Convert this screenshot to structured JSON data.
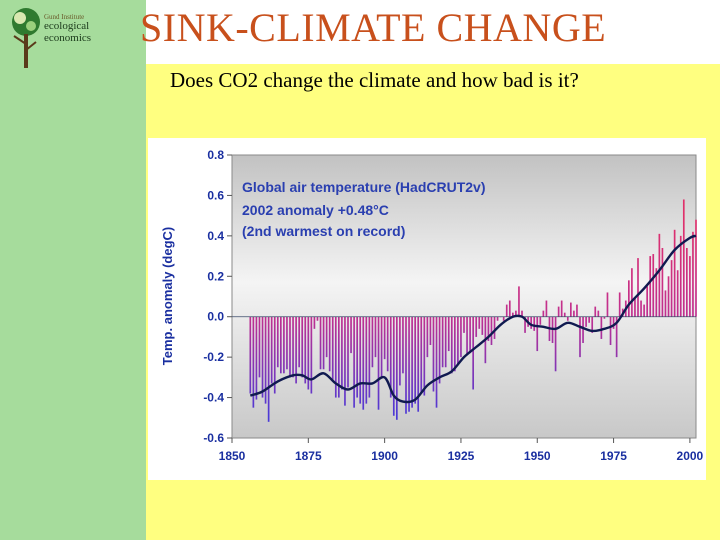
{
  "slide": {
    "title": "SINK-CLIMATE CHANGE",
    "subtitle": "Does CO2 change the climate and how bad is it?",
    "logo": {
      "line1": "Gund Institute",
      "line2": "ecological",
      "line3": "economics"
    }
  },
  "colors": {
    "title": "#c8501c",
    "background": "#ffff80",
    "left_band": "#a6dc9c",
    "top_band": "#ffffff",
    "axis_text": "#1a2fa0",
    "annotation_text": "#2a3fb0",
    "smooth_line": "#101a50",
    "bar_warm": "#e0306a",
    "bar_cool": "#4a3ad8"
  },
  "chart_data": {
    "type": "bar",
    "ylabel": "Temp. anomaly (degC)",
    "xlabel": "",
    "annotations": [
      "Global air temperature (HadCRUT2v)",
      "2002 anomaly +0.48°C",
      "(2nd warmest on record)"
    ],
    "xlim": [
      1850,
      2002
    ],
    "ylim": [
      -0.6,
      0.8
    ],
    "x_ticks": [
      1850,
      1875,
      1900,
      1925,
      1950,
      1975,
      2000
    ],
    "y_ticks": [
      "0.8",
      "0.6",
      "0.4",
      "0.2",
      "0.0",
      "-0.2",
      "-0.4",
      "-0.6"
    ],
    "grid": false,
    "years": [
      1856,
      1857,
      1858,
      1859,
      1860,
      1861,
      1862,
      1863,
      1864,
      1865,
      1866,
      1867,
      1868,
      1869,
      1870,
      1871,
      1872,
      1873,
      1874,
      1875,
      1876,
      1877,
      1878,
      1879,
      1880,
      1881,
      1882,
      1883,
      1884,
      1885,
      1886,
      1887,
      1888,
      1889,
      1890,
      1891,
      1892,
      1893,
      1894,
      1895,
      1896,
      1897,
      1898,
      1899,
      1900,
      1901,
      1902,
      1903,
      1904,
      1905,
      1906,
      1907,
      1908,
      1909,
      1910,
      1911,
      1912,
      1913,
      1914,
      1915,
      1916,
      1917,
      1918,
      1919,
      1920,
      1921,
      1922,
      1923,
      1924,
      1925,
      1926,
      1927,
      1928,
      1929,
      1930,
      1931,
      1932,
      1933,
      1934,
      1935,
      1936,
      1937,
      1938,
      1939,
      1940,
      1941,
      1942,
      1943,
      1944,
      1945,
      1946,
      1947,
      1948,
      1949,
      1950,
      1951,
      1952,
      1953,
      1954,
      1955,
      1956,
      1957,
      1958,
      1959,
      1960,
      1961,
      1962,
      1963,
      1964,
      1965,
      1966,
      1967,
      1968,
      1969,
      1970,
      1971,
      1972,
      1973,
      1974,
      1975,
      1976,
      1977,
      1978,
      1979,
      1980,
      1981,
      1982,
      1983,
      1984,
      1985,
      1986,
      1987,
      1988,
      1989,
      1990,
      1991,
      1992,
      1993,
      1994,
      1995,
      1996,
      1997,
      1998,
      1999,
      2000,
      2001,
      2002
    ],
    "anomalies": [
      -0.38,
      -0.45,
      -0.41,
      -0.3,
      -0.4,
      -0.43,
      -0.52,
      -0.33,
      -0.38,
      -0.25,
      -0.28,
      -0.28,
      -0.26,
      -0.3,
      -0.3,
      -0.33,
      -0.25,
      -0.3,
      -0.33,
      -0.36,
      -0.38,
      -0.06,
      -0.02,
      -0.26,
      -0.26,
      -0.2,
      -0.27,
      -0.32,
      -0.4,
      -0.4,
      -0.36,
      -0.44,
      -0.35,
      -0.18,
      -0.45,
      -0.4,
      -0.43,
      -0.46,
      -0.43,
      -0.4,
      -0.25,
      -0.2,
      -0.46,
      -0.3,
      -0.21,
      -0.27,
      -0.4,
      -0.49,
      -0.51,
      -0.34,
      -0.28,
      -0.48,
      -0.47,
      -0.45,
      -0.43,
      -0.47,
      -0.38,
      -0.39,
      -0.2,
      -0.14,
      -0.37,
      -0.45,
      -0.33,
      -0.25,
      -0.25,
      -0.17,
      -0.28,
      -0.27,
      -0.24,
      -0.2,
      -0.08,
      -0.19,
      -0.18,
      -0.36,
      -0.1,
      -0.06,
      -0.09,
      -0.23,
      -0.12,
      -0.14,
      -0.11,
      -0.02,
      0.0,
      -0.02,
      0.06,
      0.08,
      0.02,
      0.03,
      0.15,
      0.03,
      -0.08,
      -0.05,
      -0.06,
      -0.07,
      -0.17,
      -0.04,
      0.03,
      0.08,
      -0.12,
      -0.13,
      -0.27,
      0.05,
      0.08,
      0.02,
      -0.02,
      0.07,
      0.03,
      0.06,
      -0.2,
      -0.13,
      -0.05,
      -0.03,
      -0.08,
      0.05,
      0.03,
      -0.11,
      -0.01,
      0.12,
      -0.14,
      -0.06,
      -0.2,
      0.12,
      0.04,
      0.08,
      0.18,
      0.24,
      0.09,
      0.29,
      0.08,
      0.06,
      0.15,
      0.3,
      0.31,
      0.24,
      0.41,
      0.34,
      0.13,
      0.2,
      0.28,
      0.43,
      0.23,
      0.4,
      0.58,
      0.34,
      0.3,
      0.42,
      0.48
    ],
    "smoothed": [
      [
        1856,
        -0.39
      ],
      [
        1860,
        -0.37
      ],
      [
        1865,
        -0.32
      ],
      [
        1870,
        -0.29
      ],
      [
        1873,
        -0.29
      ],
      [
        1876,
        -0.31
      ],
      [
        1880,
        -0.28
      ],
      [
        1884,
        -0.33
      ],
      [
        1888,
        -0.36
      ],
      [
        1892,
        -0.33
      ],
      [
        1896,
        -0.33
      ],
      [
        1900,
        -0.3
      ],
      [
        1903,
        -0.39
      ],
      [
        1906,
        -0.42
      ],
      [
        1910,
        -0.41
      ],
      [
        1914,
        -0.34
      ],
      [
        1918,
        -0.3
      ],
      [
        1922,
        -0.27
      ],
      [
        1926,
        -0.2
      ],
      [
        1930,
        -0.15
      ],
      [
        1934,
        -0.1
      ],
      [
        1938,
        -0.04
      ],
      [
        1942,
        0.0
      ],
      [
        1945,
        0.0
      ],
      [
        1948,
        -0.04
      ],
      [
        1952,
        -0.05
      ],
      [
        1956,
        -0.06
      ],
      [
        1960,
        -0.03
      ],
      [
        1964,
        -0.05
      ],
      [
        1968,
        -0.07
      ],
      [
        1972,
        -0.06
      ],
      [
        1976,
        -0.03
      ],
      [
        1980,
        0.06
      ],
      [
        1985,
        0.14
      ],
      [
        1990,
        0.23
      ],
      [
        1995,
        0.33
      ],
      [
        2000,
        0.39
      ],
      [
        2002,
        0.4
      ]
    ]
  }
}
